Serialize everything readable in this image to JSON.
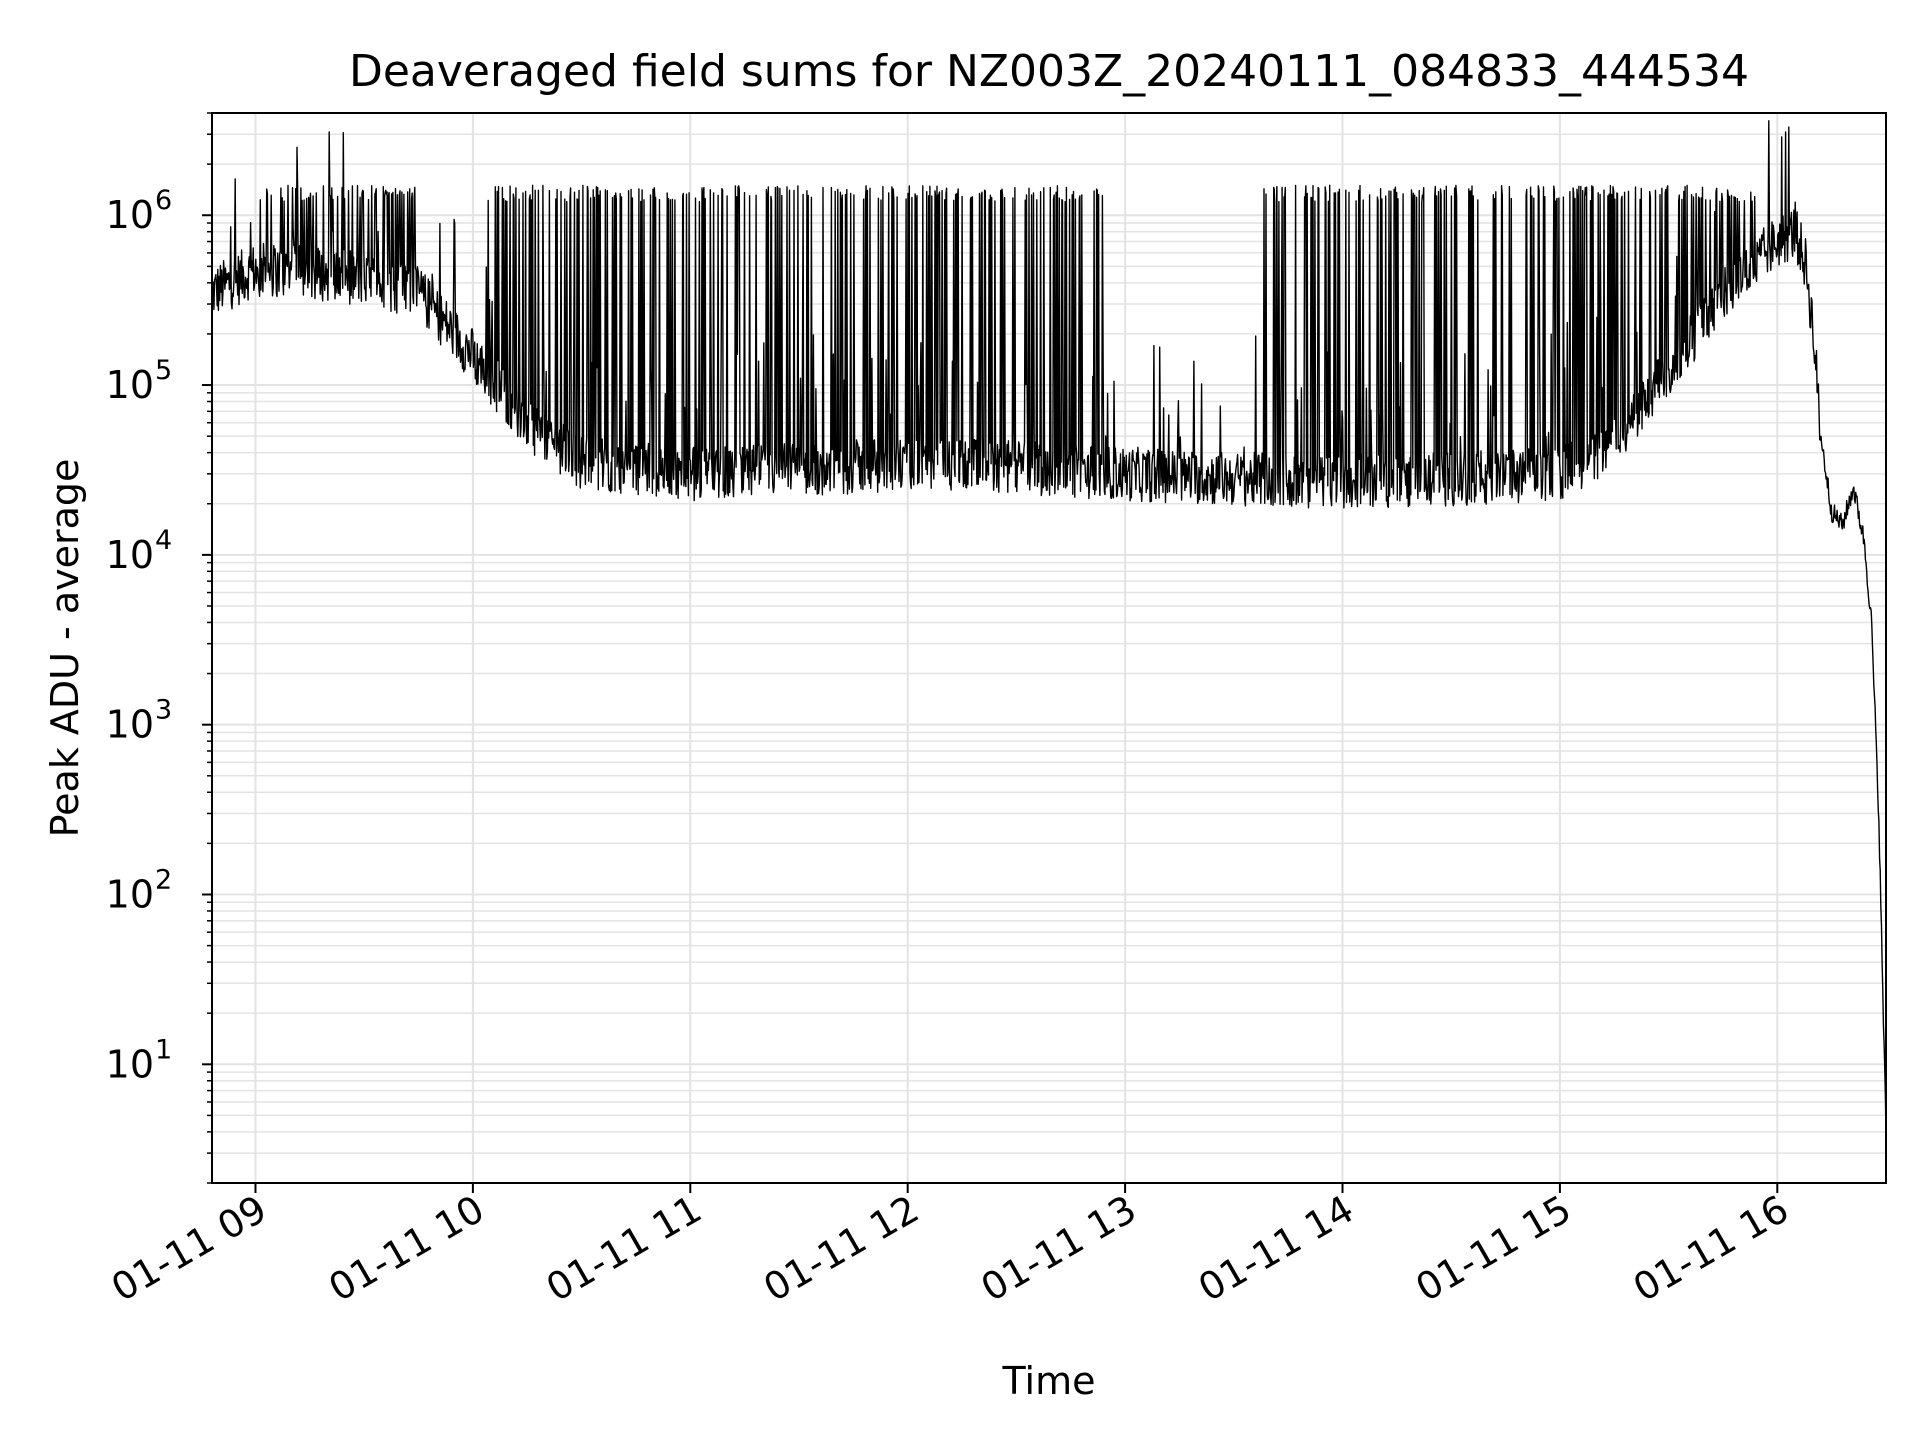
{
  "chart_data": {
    "type": "line",
    "title": "Deaveraged field sums for NZ003Z_20240111_084833_444534",
    "xlabel": "Time",
    "ylabel": "Peak ADU - average",
    "yscale": "log",
    "ylim": [
      2,
      4000000
    ],
    "xlim": [
      "2024-01-11 08:48",
      "2024-01-11 16:30"
    ],
    "grid": true,
    "line_color": "#000000",
    "x_tick_labels": [
      "01-11 09",
      "01-11 10",
      "01-11 11",
      "01-11 12",
      "01-11 13",
      "01-11 14",
      "01-11 15",
      "01-11 16"
    ],
    "y_tick_labels": [
      {
        "base": "10",
        "exp": "1"
      },
      {
        "base": "10",
        "exp": "2"
      },
      {
        "base": "10",
        "exp": "3"
      },
      {
        "base": "10",
        "exp": "4"
      },
      {
        "base": "10",
        "exp": "5"
      },
      {
        "base": "10",
        "exp": "6"
      }
    ],
    "series": [
      {
        "baseline": {
          "x": [
            "2024-01-11 08:48",
            "2024-01-11 09:00",
            "2024-01-11 09:15",
            "2024-01-11 09:30",
            "2024-01-11 09:45",
            "2024-01-11 10:00",
            "2024-01-11 10:15",
            "2024-01-11 10:30",
            "2024-01-11 11:00",
            "2024-01-11 11:30",
            "2024-01-11 12:00",
            "2024-01-11 12:30",
            "2024-01-11 13:00",
            "2024-01-11 13:30",
            "2024-01-11 14:00",
            "2024-01-11 14:30",
            "2024-01-11 15:00",
            "2024-01-11 15:15",
            "2024-01-11 15:30",
            "2024-01-11 15:45",
            "2024-01-11 16:00",
            "2024-01-11 16:05",
            "2024-01-11 16:08",
            "2024-01-11 16:10",
            "2024-01-11 16:12",
            "2024-01-11 16:15",
            "2024-01-11 16:18",
            "2024-01-11 16:21",
            "2024-01-11 16:24",
            "2024-01-11 16:26",
            "2024-01-11 16:28",
            "2024-01-11 16:30"
          ],
          "y": [
            350000,
            480000,
            460000,
            420000,
            350000,
            150000,
            60000,
            35000,
            30000,
            32000,
            34000,
            33000,
            30000,
            28000,
            27000,
            28000,
            30000,
            45000,
            120000,
            350000,
            700000,
            800000,
            500000,
            200000,
            50000,
            18000,
            15000,
            25000,
            12000,
            4000,
            300,
            4
          ]
        },
        "spike_band_y": [
          1200000,
          1500000
        ],
        "spike_ranges": [
          [
            "2024-01-11 09:00",
            "2024-01-11 09:45"
          ],
          [
            "2024-01-11 10:00",
            "2024-01-11 11:10"
          ],
          [
            "2024-01-11 11:10",
            "2024-01-11 12:55"
          ],
          [
            "2024-01-11 13:38",
            "2024-01-11 15:55"
          ]
        ]
      }
    ]
  }
}
